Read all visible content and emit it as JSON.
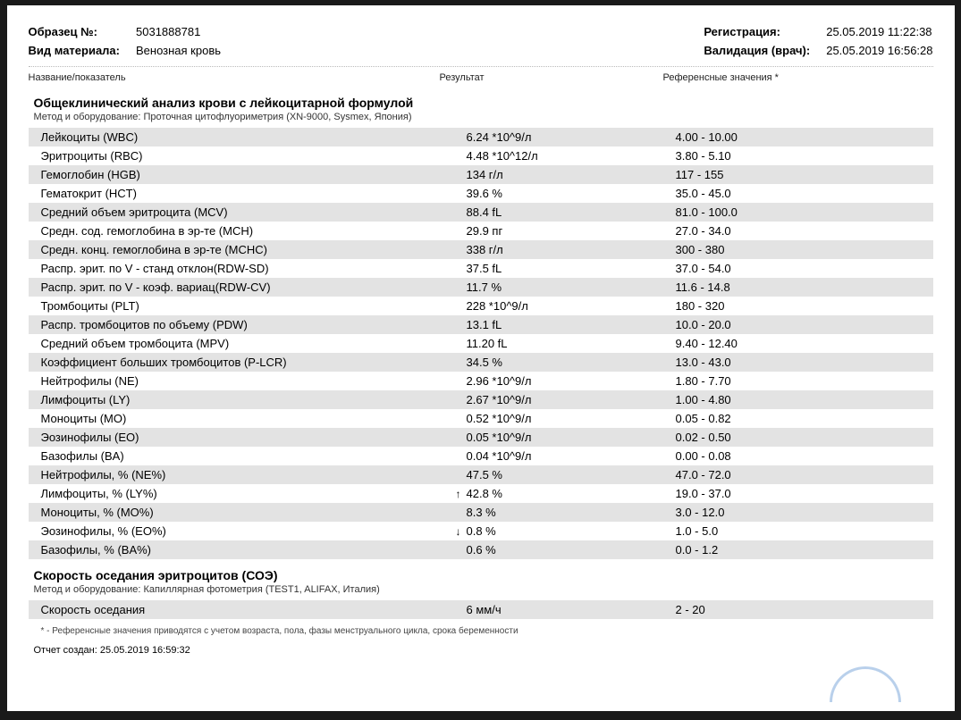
{
  "header": {
    "sample_no_label": "Образец №:",
    "sample_no": "5031888781",
    "material_label": "Вид материала:",
    "material": "Венозная кровь",
    "registration_label": "Регистрация:",
    "registration": "25.05.2019  11:22:38",
    "validation_label": "Валидация (врач):",
    "validation": "25.05.2019  16:56:28"
  },
  "columns": {
    "name": "Название/показатель",
    "result": "Результат",
    "ref": "Референсные значения *"
  },
  "section1": {
    "title": "Общеклинический анализ крови с лейкоцитарной формулой",
    "method_label": "Метод и оборудование:",
    "method": "Проточная цитофлуориметрия (XN-9000, Sysmex, Япония)"
  },
  "rows": [
    {
      "name": "Лейкоциты (WBC)",
      "result": "6.24 *10^9/л",
      "ref": "4.00 - 10.00",
      "arrow": ""
    },
    {
      "name": "Эритроциты (RBC)",
      "result": "4.48 *10^12/л",
      "ref": "3.80 - 5.10",
      "arrow": ""
    },
    {
      "name": "Гемоглобин (HGB)",
      "result": "134 г/л",
      "ref": "117 - 155",
      "arrow": ""
    },
    {
      "name": "Гематокрит (HCT)",
      "result": "39.6 %",
      "ref": "35.0 - 45.0",
      "arrow": ""
    },
    {
      "name": "Средний объем эритроцита (MCV)",
      "result": "88.4 fL",
      "ref": "81.0 - 100.0",
      "arrow": ""
    },
    {
      "name": "Средн. сод. гемоглобина в эр-те (MCH)",
      "result": "29.9 пг",
      "ref": "27.0 - 34.0",
      "arrow": ""
    },
    {
      "name": "Средн. конц. гемоглобина в эр-те (MCHC)",
      "result": "338 г/л",
      "ref": "300 - 380",
      "arrow": ""
    },
    {
      "name": "Распр. эрит. по V - станд отклон(RDW-SD)",
      "result": "37.5 fL",
      "ref": "37.0 - 54.0",
      "arrow": ""
    },
    {
      "name": "Распр. эрит. по V - коэф. вариац(RDW-CV)",
      "result": "11.7 %",
      "ref": "11.6 - 14.8",
      "arrow": ""
    },
    {
      "name": "Тромбоциты (PLT)",
      "result": "228 *10^9/л",
      "ref": "180 - 320",
      "arrow": ""
    },
    {
      "name": "Распр. тромбоцитов по объему (PDW)",
      "result": "13.1 fL",
      "ref": "10.0 - 20.0",
      "arrow": ""
    },
    {
      "name": "Средний объем тромбоцита (MPV)",
      "result": "11.20 fL",
      "ref": "9.40 - 12.40",
      "arrow": ""
    },
    {
      "name": "Коэффициент больших тромбоцитов (P-LCR)",
      "result": "34.5 %",
      "ref": "13.0 - 43.0",
      "arrow": ""
    },
    {
      "name": "Нейтрофилы (NE)",
      "result": "2.96 *10^9/л",
      "ref": "1.80 - 7.70",
      "arrow": ""
    },
    {
      "name": "Лимфоциты (LY)",
      "result": "2.67 *10^9/л",
      "ref": "1.00 - 4.80",
      "arrow": ""
    },
    {
      "name": "Моноциты (MO)",
      "result": "0.52 *10^9/л",
      "ref": "0.05 - 0.82",
      "arrow": ""
    },
    {
      "name": "Эозинофилы (EO)",
      "result": "0.05 *10^9/л",
      "ref": "0.02 - 0.50",
      "arrow": ""
    },
    {
      "name": "Базофилы (BA)",
      "result": "0.04 *10^9/л",
      "ref": "0.00 - 0.08",
      "arrow": ""
    },
    {
      "name": "Нейтрофилы, % (NE%)",
      "result": "47.5 %",
      "ref": "47.0 - 72.0",
      "arrow": ""
    },
    {
      "name": "Лимфоциты, % (LY%)",
      "result": "42.8 %",
      "ref": "19.0 - 37.0",
      "arrow": "↑"
    },
    {
      "name": "Моноциты, % (MO%)",
      "result": "8.3 %",
      "ref": "3.0 - 12.0",
      "arrow": ""
    },
    {
      "name": "Эозинофилы, % (EO%)",
      "result": "0.8 %",
      "ref": "1.0 - 5.0",
      "arrow": "↓"
    },
    {
      "name": "Базофилы, % (BA%)",
      "result": "0.6 %",
      "ref": "0.0 - 1.2",
      "arrow": ""
    }
  ],
  "section2": {
    "title": "Скорость оседания эритроцитов (СОЭ)",
    "method_label": "Метод и оборудование:",
    "method": "Капиллярная фотометрия (TEST1, ALIFAX, Италия)"
  },
  "rows2": [
    {
      "name": "Скорость оседания",
      "result": "6 мм/ч",
      "ref": "2 - 20",
      "arrow": ""
    }
  ],
  "footnote": "* - Референсные значения приводятся с учетом возраста, пола, фазы менструального цикла, срока беременности",
  "report_created_label": "Отчет создан:",
  "report_created": "25.05.2019 16:59:32"
}
